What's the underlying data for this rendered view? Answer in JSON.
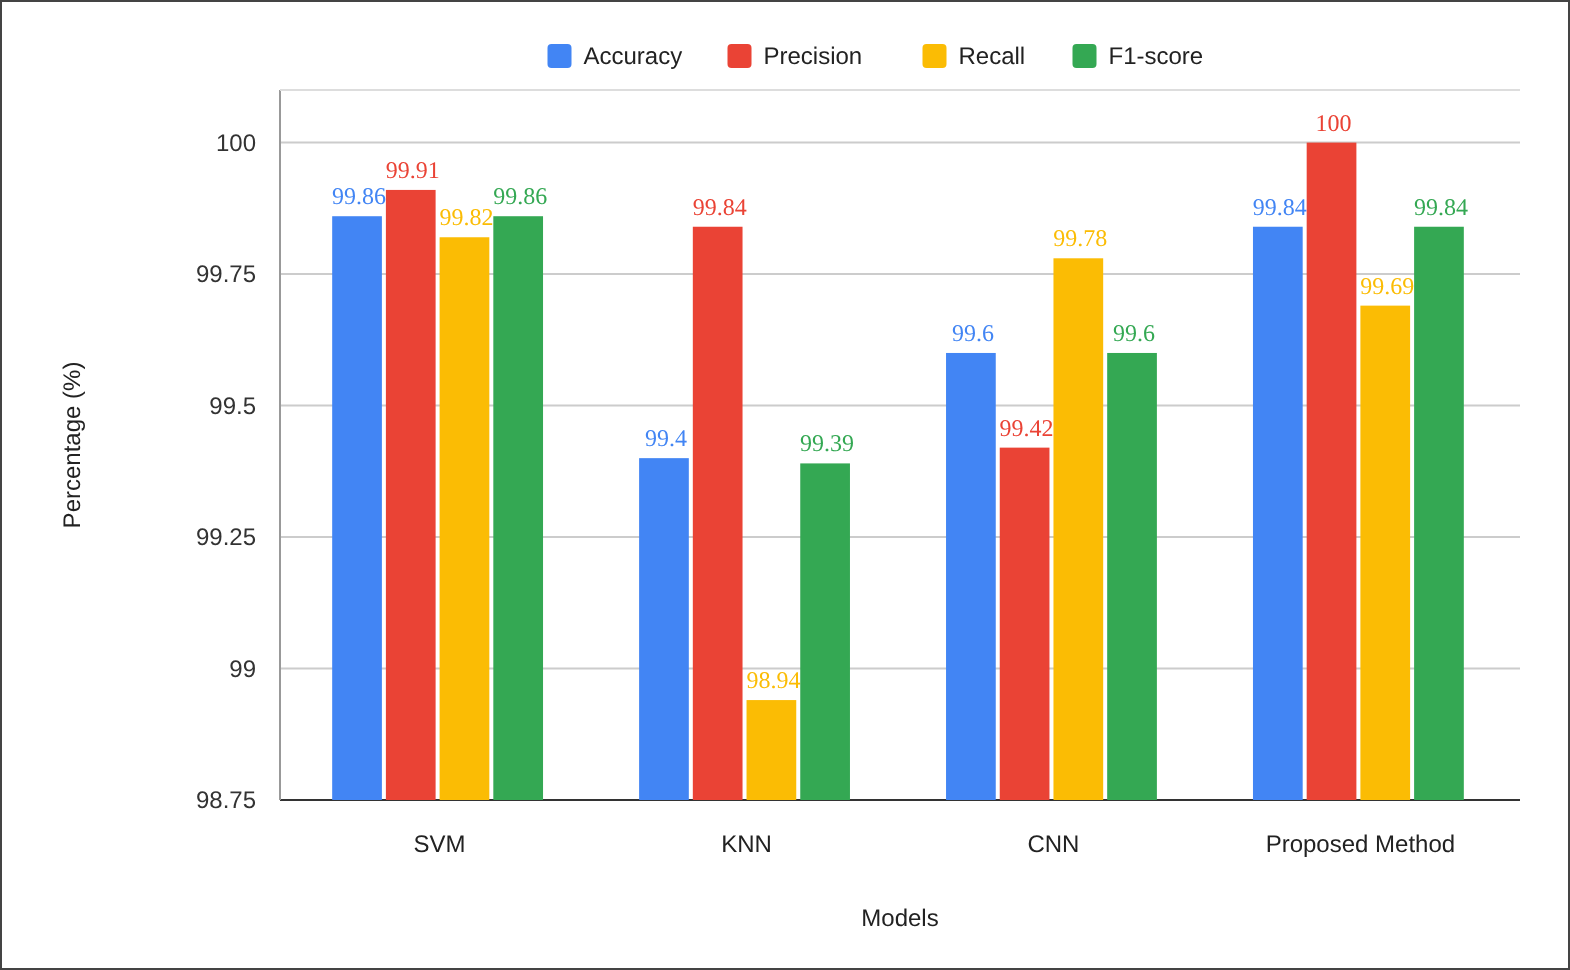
{
  "chart_data": {
    "type": "bar",
    "xlabel": "Models",
    "ylabel": "Percentage (%)",
    "categories": [
      "SVM",
      "KNN",
      "CNN",
      "Proposed Method"
    ],
    "series": [
      {
        "name": "Accuracy",
        "color": "#4285f4",
        "values": [
          99.86,
          99.4,
          99.6,
          99.84
        ]
      },
      {
        "name": "Precision",
        "color": "#ea4335",
        "values": [
          99.91,
          99.84,
          99.42,
          100
        ]
      },
      {
        "name": "Recall",
        "color": "#fbbc04",
        "values": [
          99.82,
          98.94,
          99.78,
          99.69
        ]
      },
      {
        "name": "F1-score",
        "color": "#34a853",
        "values": [
          99.86,
          99.39,
          99.6,
          99.84
        ]
      }
    ],
    "ylim": [
      98.75,
      100.1
    ],
    "yticks": [
      98.75,
      99,
      99.25,
      99.5,
      99.75,
      100
    ],
    "grid": "y",
    "legend": "top",
    "data_labels": true
  }
}
